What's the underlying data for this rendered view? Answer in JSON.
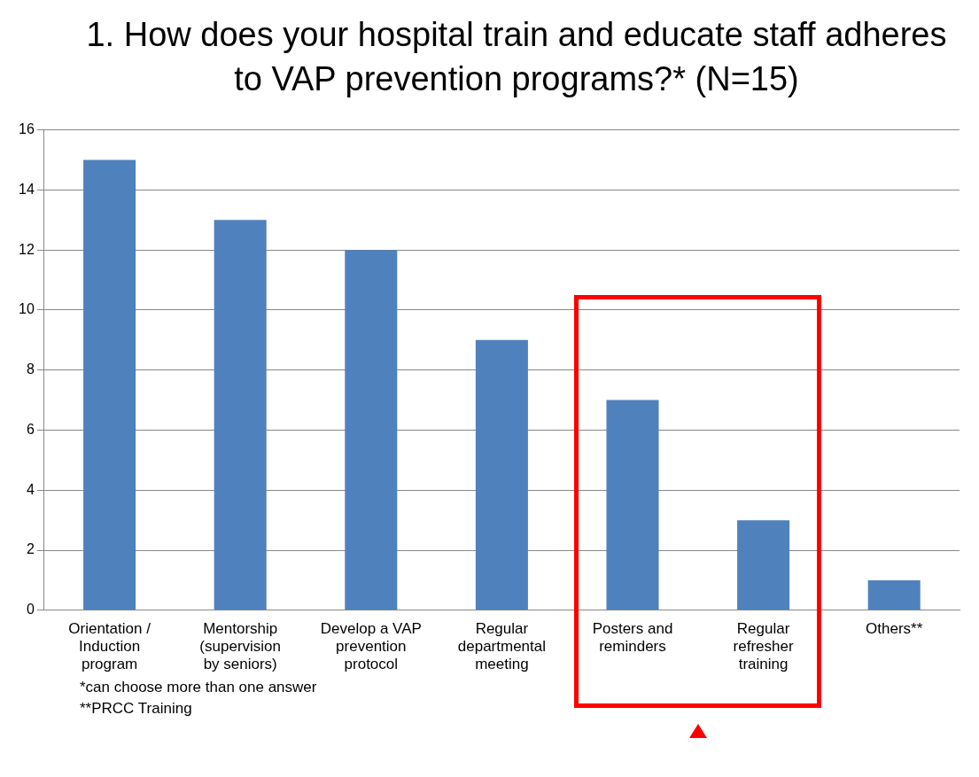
{
  "chart_data": {
    "type": "bar",
    "title": "1. How does your hospital train and educate staff adheres to VAP prevention programs?* (N=15)",
    "categories": [
      "Orientation / Induction program",
      "Mentorship (supervision by seniors)",
      "Develop a VAP prevention protocol",
      "Regular departmental meeting",
      "Posters and reminders",
      "Regular refresher training",
      "Others**"
    ],
    "values": [
      15,
      13,
      12,
      9,
      7,
      3,
      1
    ],
    "color": "#4f81bd",
    "ylim": [
      0,
      16
    ],
    "yticks": [
      0,
      2,
      4,
      6,
      8,
      10,
      12,
      14,
      16
    ],
    "grid": "y",
    "legend": false,
    "annotations": [
      "*can choose more than one answer",
      "**PRCC Training"
    ]
  }
}
